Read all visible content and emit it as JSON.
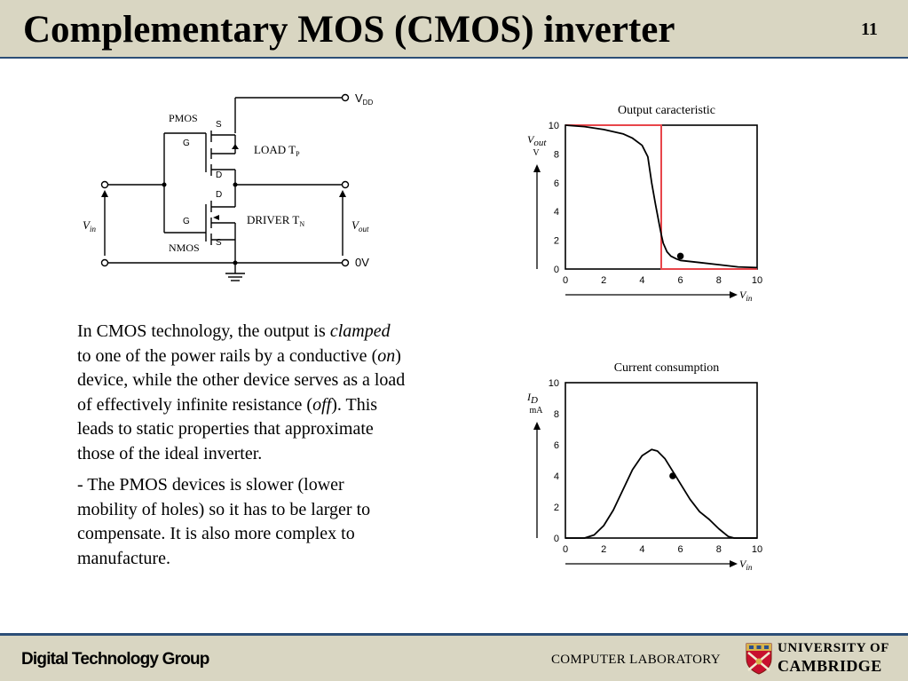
{
  "slide": {
    "title": "Complementary MOS (CMOS) inverter",
    "number": "11"
  },
  "circuit": {
    "vdd_label": "V",
    "vdd_sub": "DD",
    "pmos_label": "PMOS",
    "nmos_label": "NMOS",
    "load_label": "LOAD  T",
    "load_sub": "P",
    "driver_label": "DRIVER  T",
    "driver_sub": "N",
    "vin_label": "V",
    "vin_sub": "in",
    "vout_label": "V",
    "vout_sub": "out",
    "ground_label": "0V",
    "g_top": "G",
    "s_top": "S",
    "d_top": "D",
    "g_bot": "G",
    "s_bot": "S",
    "d_bot": "D"
  },
  "text": {
    "p1_a": "In CMOS technology, the output is ",
    "p1_b": "clamped",
    "p1_c": " to one of the power rails by a conductive (",
    "p1_d": "on",
    "p1_e": ") device, while the other device serves as a load of effectively infinite resistance (",
    "p1_f": "off",
    "p1_g": "). This leads to static properties that approximate those of the ideal inverter.",
    "p2": "- The PMOS devices is slower (lower mobility of holes) so it has to be larger to compensate. It is also more complex to manufacture."
  },
  "footer": {
    "group": "Digital Technology Group",
    "lab": "COMPUTER LABORATORY",
    "uni_line1": "UNIVERSITY OF",
    "uni_line2": "CAMBRIDGE"
  },
  "chart_data": [
    {
      "type": "line",
      "title": "Output caracteristic",
      "ylabel": "V",
      "ylabel_sub": "out",
      "yunit": "V",
      "xlabel": "V",
      "xlabel_sub": "in",
      "xlim": [
        0,
        10
      ],
      "ylim": [
        0,
        10
      ],
      "xticks": [
        0,
        2,
        4,
        6,
        8,
        10
      ],
      "yticks": [
        0,
        2,
        4,
        6,
        8,
        10
      ],
      "grid": false,
      "colors": {
        "actual": "#000000",
        "ideal": "#e8454a"
      },
      "series": [
        {
          "role": "actual",
          "x": [
            0,
            1,
            2,
            3,
            3.5,
            4.0,
            4.3,
            4.5,
            4.7,
            4.9,
            5.0,
            5.1,
            5.3,
            5.5,
            5.8,
            6.0,
            7,
            8,
            9,
            10
          ],
          "y": [
            10,
            9.9,
            9.7,
            9.4,
            9.1,
            8.6,
            7.8,
            6.0,
            4.5,
            3.1,
            2.4,
            1.8,
            1.2,
            0.9,
            0.7,
            0.6,
            0.45,
            0.3,
            0.15,
            0.1
          ]
        },
        {
          "role": "ideal",
          "x": [
            0,
            5,
            5,
            10
          ],
          "y": [
            10,
            10,
            0,
            0
          ]
        }
      ],
      "marker": {
        "x": 6.0,
        "y": 0.9
      }
    },
    {
      "type": "line",
      "title": "Current consumption",
      "ylabel": "I",
      "ylabel_sub": "D",
      "yunit": "mA",
      "xlabel": "V",
      "xlabel_sub": "in",
      "xlim": [
        0,
        10
      ],
      "ylim": [
        0,
        10
      ],
      "xticks": [
        0,
        2,
        4,
        6,
        8,
        10
      ],
      "yticks": [
        0,
        2,
        4,
        6,
        8,
        10
      ],
      "grid": false,
      "series": [
        {
          "role": "actual",
          "x": [
            0,
            1.0,
            1.5,
            2.0,
            2.5,
            3.0,
            3.5,
            4.0,
            4.5,
            4.8,
            5.2,
            5.6,
            6.0,
            6.5,
            7.0,
            7.5,
            8.0,
            8.5,
            8.8,
            10
          ],
          "y": [
            0,
            0,
            0.2,
            0.8,
            1.8,
            3.1,
            4.4,
            5.3,
            5.7,
            5.6,
            5.1,
            4.3,
            3.5,
            2.5,
            1.7,
            1.2,
            0.6,
            0.1,
            0,
            0
          ]
        }
      ],
      "marker": {
        "x": 5.6,
        "y": 4.0
      }
    }
  ]
}
